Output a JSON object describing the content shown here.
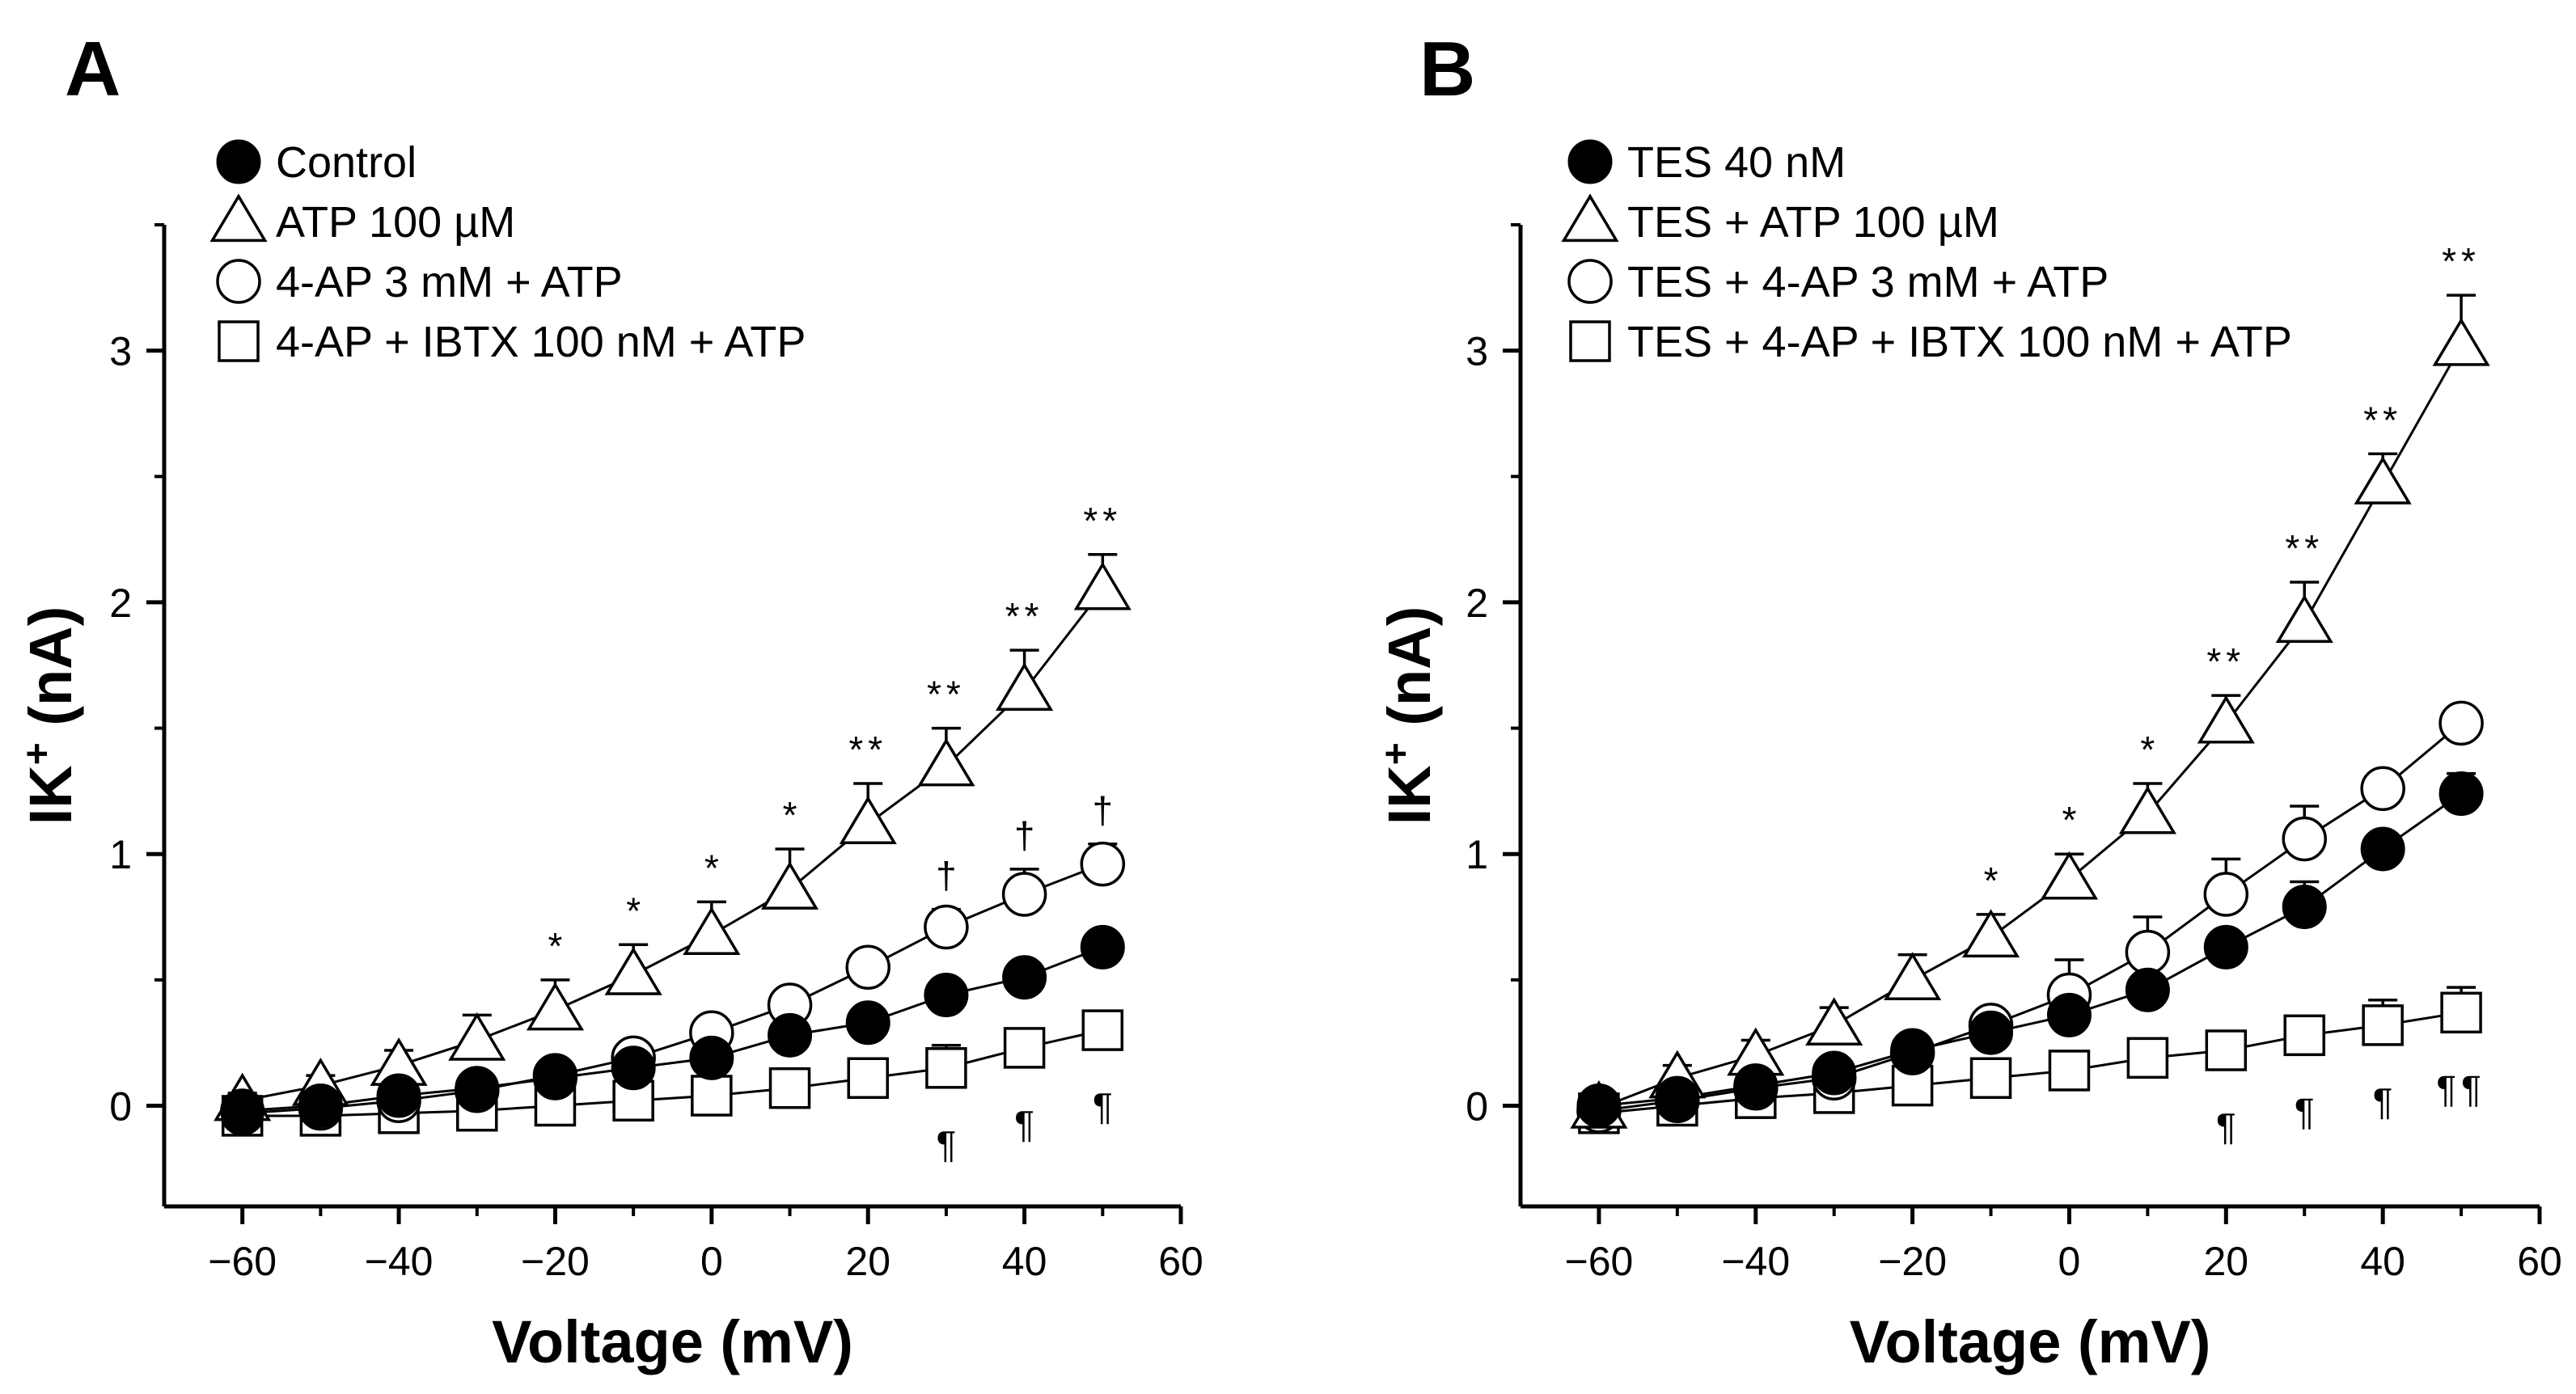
{
  "chart_data": [
    {
      "type": "line",
      "panel_label": "A",
      "xlabel": "Voltage (mV)",
      "ylabel_main": "IK",
      "ylabel_sup": "+",
      "ylabel_unit": " (nA)",
      "xlim": [
        -70,
        60
      ],
      "ylim": [
        -0.4,
        3.5
      ],
      "xticks": [
        -60,
        -40,
        -20,
        0,
        20,
        40,
        60
      ],
      "xtick_labels": [
        "−60",
        "−40",
        "−20",
        "0",
        "20",
        "40",
        "60"
      ],
      "yticks": [
        0,
        1,
        2,
        3
      ],
      "ytick_labels": [
        "0",
        "1",
        "2",
        "3"
      ],
      "legend_position": "top-left",
      "x": [
        -60,
        -50,
        -40,
        -30,
        -20,
        -10,
        0,
        10,
        20,
        30,
        40,
        50
      ],
      "series": [
        {
          "name": "Control",
          "marker": "circle-filled",
          "values": [
            -0.02,
            0.0,
            0.04,
            0.07,
            0.11,
            0.15,
            0.19,
            0.28,
            0.33,
            0.44,
            0.51,
            0.63
          ],
          "errors": [
            0.02,
            0.02,
            0.02,
            0.03,
            0.03,
            0.03,
            0.04,
            0.04,
            0.04,
            0.04,
            0.04,
            0.04
          ]
        },
        {
          "name": "ATP 100 µM",
          "marker": "triangle-open",
          "values": [
            0.02,
            0.08,
            0.16,
            0.26,
            0.38,
            0.52,
            0.68,
            0.86,
            1.12,
            1.35,
            1.65,
            2.05
          ],
          "errors": [
            0.03,
            0.04,
            0.06,
            0.1,
            0.12,
            0.12,
            0.13,
            0.16,
            0.16,
            0.15,
            0.16,
            0.14
          ],
          "significance": [
            null,
            null,
            null,
            null,
            "*",
            "*",
            "*",
            "*",
            "**",
            "**",
            "**",
            "**"
          ]
        },
        {
          "name": "4-AP 3 mM + ATP",
          "marker": "circle-open",
          "values": [
            -0.03,
            -0.01,
            0.02,
            0.06,
            0.12,
            0.19,
            0.29,
            0.4,
            0.55,
            0.71,
            0.84,
            0.96
          ],
          "errors": [
            0.02,
            0.02,
            0.02,
            0.02,
            0.03,
            0.04,
            0.04,
            0.04,
            0.05,
            0.07,
            0.1,
            0.08
          ],
          "significance": [
            null,
            null,
            null,
            null,
            null,
            null,
            null,
            null,
            null,
            "†",
            "†",
            "†"
          ]
        },
        {
          "name": "4-AP + IBTX 100 nM + ATP",
          "marker": "square-open",
          "values": [
            -0.04,
            -0.04,
            -0.03,
            -0.02,
            0.0,
            0.02,
            0.04,
            0.07,
            0.11,
            0.15,
            0.23,
            0.3
          ],
          "errors": [
            0.01,
            0.01,
            0.01,
            0.01,
            0.02,
            0.02,
            0.02,
            0.02,
            0.03,
            0.09,
            0.04,
            0.04
          ],
          "significance": [
            null,
            null,
            null,
            null,
            null,
            null,
            null,
            null,
            null,
            "¶",
            "¶",
            "¶"
          ]
        }
      ]
    },
    {
      "type": "line",
      "panel_label": "B",
      "xlabel": "Voltage (mV)",
      "ylabel_main": "IK",
      "ylabel_sup": "+",
      "ylabel_unit": " (nA)",
      "xlim": [
        -70,
        60
      ],
      "ylim": [
        -0.4,
        3.5
      ],
      "xticks": [
        -60,
        -40,
        -20,
        0,
        20,
        40,
        60
      ],
      "xtick_labels": [
        "−60",
        "−40",
        "−20",
        "0",
        "20",
        "40",
        "60"
      ],
      "yticks": [
        0,
        1,
        2,
        3
      ],
      "ytick_labels": [
        "0",
        "1",
        "2",
        "3"
      ],
      "legend_position": "top-left",
      "x": [
        -60,
        -50,
        -40,
        -30,
        -20,
        -10,
        0,
        10,
        20,
        30,
        40,
        50
      ],
      "series": [
        {
          "name": "TES 40 nM",
          "marker": "circle-filled",
          "values": [
            0.0,
            0.03,
            0.08,
            0.13,
            0.22,
            0.29,
            0.36,
            0.46,
            0.63,
            0.79,
            1.02,
            1.24
          ],
          "errors": [
            0.02,
            0.02,
            0.02,
            0.03,
            0.04,
            0.04,
            0.04,
            0.05,
            0.05,
            0.1,
            0.06,
            0.08
          ]
        },
        {
          "name": "TES + ATP 100 µM",
          "marker": "triangle-open",
          "values": [
            -0.01,
            0.11,
            0.2,
            0.32,
            0.5,
            0.67,
            0.9,
            1.16,
            1.52,
            1.92,
            2.47,
            3.02
          ],
          "errors": [
            0.03,
            0.05,
            0.06,
            0.07,
            0.1,
            0.09,
            0.1,
            0.12,
            0.11,
            0.16,
            0.12,
            0.2
          ],
          "significance": [
            null,
            null,
            null,
            null,
            null,
            "*",
            "*",
            "*",
            "**",
            "**",
            "**",
            "**"
          ]
        },
        {
          "name": "TES + 4-AP 3 mM + ATP",
          "marker": "circle-open",
          "values": [
            -0.02,
            0.02,
            0.07,
            0.11,
            0.21,
            0.32,
            0.44,
            0.61,
            0.84,
            1.06,
            1.26,
            1.52
          ],
          "errors": [
            0.02,
            0.02,
            0.02,
            0.03,
            0.04,
            0.05,
            0.14,
            0.14,
            0.14,
            0.13,
            0.03,
            0.03
          ]
        },
        {
          "name": "TES + 4-AP + IBTX 100 nM + ATP",
          "marker": "square-open",
          "values": [
            -0.03,
            0.0,
            0.03,
            0.05,
            0.08,
            0.11,
            0.14,
            0.19,
            0.22,
            0.28,
            0.32,
            0.37
          ],
          "errors": [
            0.01,
            0.01,
            0.01,
            0.01,
            0.02,
            0.02,
            0.03,
            0.03,
            0.04,
            0.06,
            0.1,
            0.1
          ],
          "significance": [
            null,
            null,
            null,
            null,
            null,
            null,
            null,
            null,
            "¶",
            "¶",
            "¶",
            "¶¶"
          ]
        }
      ]
    }
  ]
}
